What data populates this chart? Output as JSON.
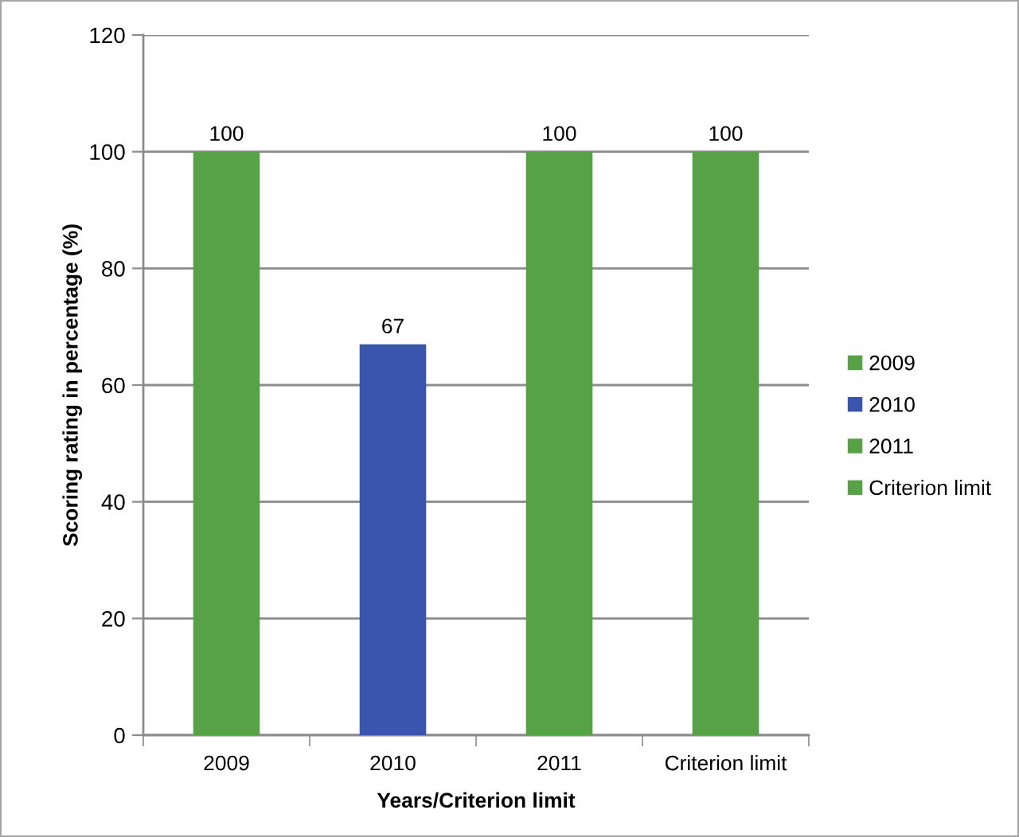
{
  "chart_data": {
    "type": "bar",
    "xlabel": "Years/Criterion limit",
    "ylabel": "Scoring rating in percentage (%)",
    "categories": [
      "2009",
      "2010",
      "2011",
      "Criterion limit"
    ],
    "series": [
      {
        "name": "2009",
        "color": "#57a246",
        "values": [
          100,
          null,
          null,
          null
        ]
      },
      {
        "name": "2010",
        "color": "#3955ae",
        "values": [
          null,
          67,
          null,
          null
        ]
      },
      {
        "name": "2011",
        "color": "#57a246",
        "values": [
          null,
          null,
          100,
          null
        ]
      },
      {
        "name": "Criterion limit",
        "color": "#57a246",
        "values": [
          null,
          null,
          null,
          100
        ]
      }
    ],
    "ylim": [
      0,
      120
    ],
    "yticks": [
      0,
      20,
      40,
      60,
      80,
      100,
      120
    ],
    "grid": "y",
    "legend": "right",
    "data_labels": true
  }
}
